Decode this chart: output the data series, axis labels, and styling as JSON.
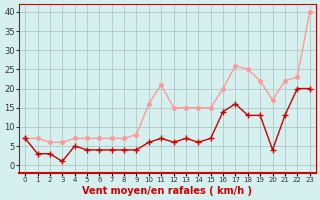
{
  "x": [
    0,
    1,
    2,
    3,
    4,
    5,
    6,
    7,
    8,
    9,
    10,
    11,
    12,
    13,
    14,
    15,
    16,
    17,
    18,
    19,
    20,
    21,
    22,
    23
  ],
  "vent_moyen": [
    7,
    3,
    3,
    1,
    5,
    4,
    4,
    4,
    4,
    4,
    6,
    7,
    6,
    7,
    6,
    7,
    14,
    16,
    13,
    13,
    4,
    13,
    20,
    20
  ],
  "rafales": [
    7,
    7,
    6,
    6,
    7,
    7,
    7,
    7,
    7,
    8,
    16,
    21,
    15,
    15,
    15,
    15,
    20,
    26,
    25,
    22,
    17,
    22,
    23,
    40
  ],
  "color_moyen": "#cc0000",
  "color_rafales": "#ff9999",
  "bg_color": "#d6f0f0",
  "grid_color": "#b0c8c8",
  "xlabel": "Vent moyen/en rafales ( km/h )",
  "xlabel_color": "#cc0000",
  "yticks": [
    0,
    5,
    10,
    15,
    20,
    25,
    30,
    35,
    40
  ],
  "ylim": [
    -2,
    42
  ],
  "xlim": [
    -0.5,
    23.5
  ]
}
